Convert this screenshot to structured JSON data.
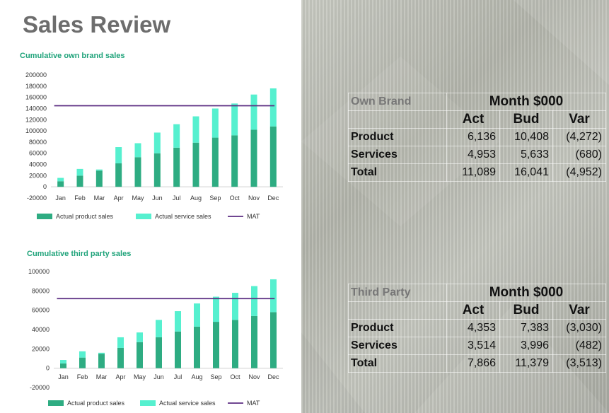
{
  "page_title": "Sales Review",
  "colors": {
    "product": "#2eac82",
    "service": "#56f0cf",
    "mat": "#5b2d82",
    "title": "#1fa37a"
  },
  "chart_data": [
    {
      "type": "bar",
      "title": "Cumulative own brand sales",
      "categories": [
        "Jan",
        "Feb",
        "Mar",
        "Apr",
        "May",
        "Jun",
        "Jul",
        "Aug",
        "Sep",
        "Oct",
        "Nov",
        "Dec"
      ],
      "series": [
        {
          "name": "Actual product sales",
          "values": [
            10000,
            20000,
            29000,
            42000,
            53000,
            60000,
            70000,
            79000,
            88000,
            92000,
            102000,
            108000
          ]
        },
        {
          "name": "Actual service sales",
          "values": [
            6000,
            12000,
            2000,
            29000,
            25000,
            37000,
            42000,
            47000,
            52000,
            57000,
            63000,
            68000
          ]
        },
        {
          "name": "MAT",
          "type": "line",
          "values": [
            145000,
            145000,
            145000,
            145000,
            145000,
            145000,
            145000,
            145000,
            145000,
            145000,
            145000,
            145000
          ]
        }
      ],
      "stacked": true,
      "ylim": [
        -20000,
        200000
      ],
      "yticks": [
        "200000",
        "180000",
        "160000",
        "140000",
        "120000",
        "100000",
        "80000",
        "60000",
        "40000",
        "20000",
        "0",
        "-20000"
      ],
      "ytick_values": [
        200000,
        180000,
        160000,
        140000,
        120000,
        100000,
        80000,
        60000,
        40000,
        20000,
        0,
        -20000
      ],
      "legend": "bottom",
      "grid": false
    },
    {
      "type": "bar",
      "title": "Cumulative third party sales",
      "categories": [
        "Jan",
        "Feb",
        "Mar",
        "Apr",
        "May",
        "Jun",
        "Jul",
        "Aug",
        "Sep",
        "Oct",
        "Nov",
        "Dec"
      ],
      "series": [
        {
          "name": "Actual product sales",
          "values": [
            5000,
            11000,
            15000,
            21000,
            27000,
            32000,
            38000,
            43000,
            48000,
            50000,
            54000,
            58000
          ]
        },
        {
          "name": "Actual service sales",
          "values": [
            3500,
            6500,
            1000,
            11000,
            10000,
            18000,
            21000,
            24000,
            26000,
            28000,
            31000,
            34000
          ]
        },
        {
          "name": "MAT",
          "type": "line",
          "values": [
            72000,
            72000,
            72000,
            72000,
            72000,
            72000,
            72000,
            72000,
            72000,
            72000,
            72000,
            72000
          ]
        }
      ],
      "stacked": true,
      "ylim": [
        -20000,
        100000
      ],
      "yticks": [
        "100000",
        "80000",
        "60000",
        "40000",
        "20000",
        "0",
        "-20000"
      ],
      "ytick_values": [
        100000,
        80000,
        60000,
        40000,
        20000,
        0,
        -20000
      ],
      "legend": "bottom",
      "grid": false
    }
  ],
  "tables": [
    {
      "caption": "Own Brand",
      "header": "Month $000",
      "columns": [
        "Act",
        "Bud",
        "Var"
      ],
      "rows": [
        {
          "label": "Product",
          "values": [
            "6,136",
            "10,408",
            "(4,272)"
          ]
        },
        {
          "label": "Services",
          "values": [
            "4,953",
            "5,633",
            "(680)"
          ]
        },
        {
          "label": "Total",
          "values": [
            "11,089",
            "16,041",
            "(4,952)"
          ]
        }
      ]
    },
    {
      "caption": "Third Party",
      "header": "Month $000",
      "columns": [
        "Act",
        "Bud",
        "Var"
      ],
      "rows": [
        {
          "label": "Product",
          "values": [
            "4,353",
            "7,383",
            "(3,030)"
          ]
        },
        {
          "label": "Services",
          "values": [
            "3,514",
            "3,996",
            "(482)"
          ]
        },
        {
          "label": "Total",
          "values": [
            "7,866",
            "11,379",
            "(3,513)"
          ]
        }
      ]
    }
  ]
}
